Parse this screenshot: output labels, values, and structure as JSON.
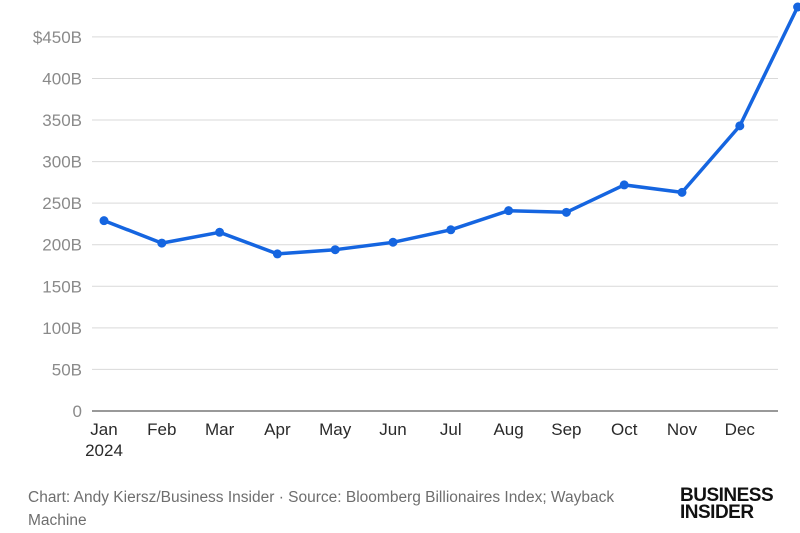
{
  "chart_data": {
    "type": "line",
    "x": [
      "Jan",
      "Feb",
      "Mar",
      "Apr",
      "May",
      "Jun",
      "Jul",
      "Aug",
      "Sep",
      "Oct",
      "Nov",
      "Dec",
      "Dec end"
    ],
    "x_tick_labels": [
      "Jan",
      "Feb",
      "Mar",
      "Apr",
      "May",
      "Jun",
      "Jul",
      "Aug",
      "Sep",
      "Oct",
      "Nov",
      "Dec"
    ],
    "x_year_label": "2024",
    "series": [
      {
        "values": [
          229,
          202,
          215,
          189,
          194,
          203,
          218,
          241,
          239,
          272,
          263,
          343,
          486
        ]
      }
    ],
    "y_ticks": [
      {
        "value": 0,
        "label": "0"
      },
      {
        "value": 50,
        "label": "50B"
      },
      {
        "value": 100,
        "label": "100B"
      },
      {
        "value": 150,
        "label": "150B"
      },
      {
        "value": 200,
        "label": "200B"
      },
      {
        "value": 250,
        "label": "250B"
      },
      {
        "value": 300,
        "label": "300B"
      },
      {
        "value": 350,
        "label": "350B"
      },
      {
        "value": 400,
        "label": "400B"
      },
      {
        "value": 450,
        "label": "$450B"
      }
    ],
    "ylim": [
      0,
      486
    ],
    "grid": true,
    "legend": "none",
    "colors": {
      "line": "#1565e0",
      "grid": "#d9d9d9",
      "axis": "#333333"
    }
  },
  "footer": {
    "credit": "Chart: Andy Kiersz/Business Insider · Source: Bloomberg Billionaires Index; Wayback Machine"
  },
  "logo": {
    "line1": "BUSINESS",
    "line2": "INSIDER"
  }
}
